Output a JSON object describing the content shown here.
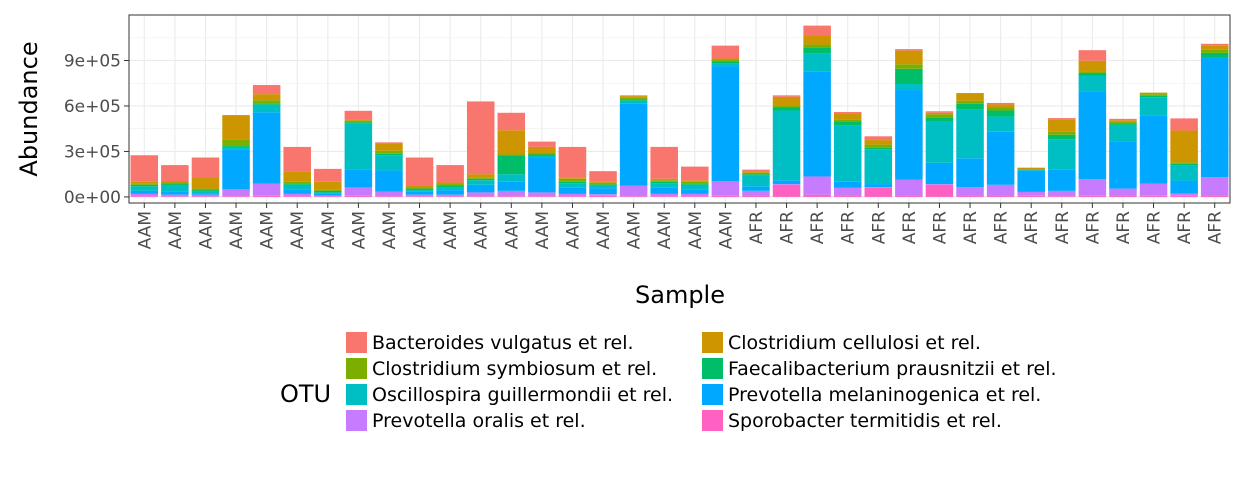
{
  "chart_data": {
    "type": "bar",
    "stacked": true,
    "title": "",
    "xlabel": "Sample",
    "ylabel": "Abundance",
    "ylim": [
      -40000,
      1200000
    ],
    "yticks": [
      0,
      300000,
      600000,
      900000
    ],
    "ytick_labels": [
      "0e+00",
      "3e+05",
      "6e+05",
      "9e+05"
    ],
    "grid": true,
    "legend_position": "bottom",
    "legend_title": "OTU",
    "categories": [
      "AAM",
      "AAM",
      "AAM",
      "AAM",
      "AAM",
      "AAM",
      "AAM",
      "AAM",
      "AAM",
      "AAM",
      "AAM",
      "AAM",
      "AAM",
      "AAM",
      "AAM",
      "AAM",
      "AAM",
      "AAM",
      "AAM",
      "AAM",
      "AFR",
      "AFR",
      "AFR",
      "AFR",
      "AFR",
      "AFR",
      "AFR",
      "AFR",
      "AFR",
      "AFR",
      "AFR",
      "AFR",
      "AFR",
      "AFR",
      "AFR",
      "AFR"
    ],
    "series": [
      {
        "name": "Sporobacter termitidis et rel.",
        "color": "#FF61C3",
        "values": [
          5000,
          5000,
          5000,
          5000,
          8000,
          5000,
          5000,
          8000,
          5000,
          5000,
          5000,
          5000,
          5000,
          5000,
          5000,
          8000,
          5000,
          5000,
          5000,
          8000,
          10000,
          80000,
          15000,
          10000,
          60000,
          10000,
          80000,
          10000,
          10000,
          8000,
          5000,
          8000,
          10000,
          8000,
          8000,
          10000
        ]
      },
      {
        "name": "Prevotella oralis et rel.",
        "color": "#C77CFF",
        "values": [
          15000,
          10000,
          10000,
          45000,
          80000,
          15000,
          5000,
          55000,
          30000,
          10000,
          10000,
          25000,
          35000,
          25000,
          15000,
          10000,
          70000,
          15000,
          15000,
          95000,
          30000,
          5000,
          120000,
          50000,
          5000,
          105000,
          5000,
          55000,
          70000,
          25000,
          35000,
          110000,
          45000,
          80000,
          15000,
          120000
        ]
      },
      {
        "name": "Prevotella melaninogenica et rel.",
        "color": "#00A9FF",
        "values": [
          20000,
          20000,
          10000,
          260000,
          470000,
          30000,
          10000,
          120000,
          140000,
          20000,
          30000,
          50000,
          60000,
          230000,
          40000,
          40000,
          540000,
          40000,
          30000,
          760000,
          30000,
          25000,
          690000,
          40000,
          20000,
          590000,
          140000,
          190000,
          350000,
          140000,
          140000,
          580000,
          310000,
          450000,
          85000,
          790000
        ]
      },
      {
        "name": "Oscillospira guillermondii et rel.",
        "color": "#00BFC4",
        "values": [
          30000,
          40000,
          10000,
          20000,
          50000,
          30000,
          10000,
          300000,
          100000,
          10000,
          20000,
          30000,
          50000,
          10000,
          30000,
          15000,
          20000,
          30000,
          30000,
          20000,
          70000,
          460000,
          120000,
          370000,
          230000,
          40000,
          270000,
          320000,
          100000,
          10000,
          200000,
          100000,
          110000,
          120000,
          100000,
          0
        ]
      },
      {
        "name": "Faecalibacterium prausnitzii et rel.",
        "color": "#00BE67",
        "values": [
          10000,
          10000,
          10000,
          10000,
          10000,
          10000,
          10000,
          10000,
          10000,
          10000,
          10000,
          10000,
          120000,
          10000,
          10000,
          10000,
          10000,
          10000,
          10000,
          10000,
          10000,
          20000,
          40000,
          30000,
          10000,
          100000,
          30000,
          40000,
          40000,
          0,
          30000,
          20000,
          10000,
          10000,
          10000,
          30000
        ]
      },
      {
        "name": "Clostridium symbiosum et rel.",
        "color": "#7CAE00",
        "values": [
          10000,
          10000,
          10000,
          40000,
          20000,
          10000,
          10000,
          10000,
          20000,
          10000,
          10000,
          10000,
          10000,
          10000,
          20000,
          10000,
          10000,
          10000,
          10000,
          10000,
          10000,
          10000,
          20000,
          10000,
          20000,
          30000,
          20000,
          20000,
          20000,
          0,
          20000,
          10000,
          10000,
          10000,
          10000,
          20000
        ]
      },
      {
        "name": "Clostridium cellulosi et rel.",
        "color": "#CD9600",
        "values": [
          10000,
          10000,
          70000,
          160000,
          40000,
          70000,
          50000,
          10000,
          50000,
          10000,
          10000,
          20000,
          160000,
          40000,
          10000,
          10000,
          10000,
          10000,
          10000,
          10000,
          10000,
          60000,
          60000,
          40000,
          30000,
          90000,
          10000,
          50000,
          20000,
          10000,
          80000,
          70000,
          10000,
          10000,
          210000,
          30000
        ]
      },
      {
        "name": "Bacteroides vulgatus et rel.",
        "color": "#F8766D",
        "values": [
          175000,
          105000,
          135000,
          0,
          60000,
          160000,
          85000,
          55000,
          5000,
          185000,
          115000,
          480000,
          115000,
          35000,
          200000,
          67000,
          5000,
          210000,
          90000,
          85000,
          10000,
          10000,
          65000,
          10000,
          25000,
          10000,
          10000,
          0,
          10000,
          0,
          10000,
          70000,
          10000,
          0,
          80000,
          10000
        ]
      }
    ]
  },
  "legend": {
    "title": "OTU",
    "items": [
      {
        "label": "Bacteroides vulgatus et rel.",
        "color": "#F8766D"
      },
      {
        "label": "Clostridium cellulosi et rel.",
        "color": "#CD9600"
      },
      {
        "label": "Clostridium symbiosum et rel.",
        "color": "#7CAE00"
      },
      {
        "label": "Faecalibacterium prausnitzii et rel.",
        "color": "#00BE67"
      },
      {
        "label": "Oscillospira guillermondii et rel.",
        "color": "#00BFC4"
      },
      {
        "label": "Prevotella melaninogenica et rel.",
        "color": "#00A9FF"
      },
      {
        "label": "Prevotella oralis et rel.",
        "color": "#C77CFF"
      },
      {
        "label": "Sporobacter termitidis et rel.",
        "color": "#FF61C3"
      }
    ]
  }
}
